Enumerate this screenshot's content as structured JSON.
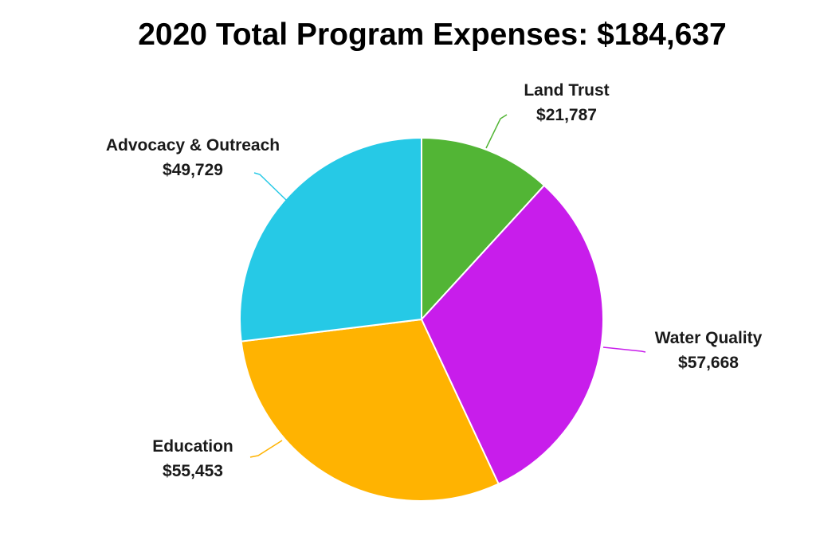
{
  "chart_data": {
    "type": "pie",
    "title": "2020 Total Program Expenses: $184,637",
    "slices": [
      {
        "label": "Land Trust",
        "value": 21787,
        "value_label": "$21,787",
        "color": "#52b535"
      },
      {
        "label": "Water Quality",
        "value": 57668,
        "value_label": "$57,668",
        "color": "#c81deb"
      },
      {
        "label": "Education",
        "value": 55453,
        "value_label": "$55,453",
        "color": "#ffb301"
      },
      {
        "label": "Advocacy & Outreach",
        "value": 49729,
        "value_label": "$49,729",
        "color": "#26c9e6"
      }
    ],
    "start_angle_deg": 0,
    "direction": "clockwise"
  }
}
